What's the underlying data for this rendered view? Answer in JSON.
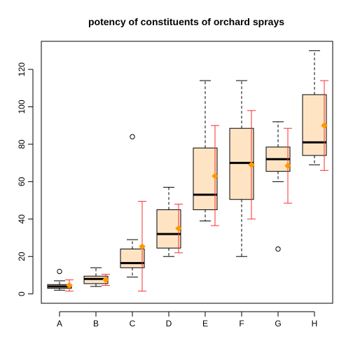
{
  "chart_data": {
    "type": "boxplot",
    "title": "potency of constituents of orchard sprays",
    "xlabel": "",
    "ylabel": "",
    "ylim": [
      -5,
      135
    ],
    "y_ticks": [
      0,
      20,
      40,
      60,
      80,
      100,
      120
    ],
    "categories": [
      "A",
      "B",
      "C",
      "D",
      "E",
      "F",
      "G",
      "H"
    ],
    "boxes": [
      {
        "category": "A",
        "whisker_low": 2,
        "q1": 3,
        "median": 4,
        "q3": 5,
        "whisker_high": 7,
        "outliers": [
          12
        ],
        "mean": 4.6,
        "ci_low": 1.5,
        "ci_high": 7.5
      },
      {
        "category": "B",
        "whisker_low": 4,
        "q1": 5.5,
        "median": 8,
        "q3": 9.5,
        "whisker_high": 14,
        "outliers": [],
        "mean": 7.6,
        "ci_low": 4.5,
        "ci_high": 10.5
      },
      {
        "category": "C",
        "whisker_low": 9,
        "q1": 14,
        "median": 16.5,
        "q3": 24,
        "whisker_high": 29,
        "outliers": [
          84
        ],
        "mean": 25.3,
        "ci_low": 1.5,
        "ci_high": 49.5
      },
      {
        "category": "D",
        "whisker_low": 20,
        "q1": 24.5,
        "median": 32,
        "q3": 45,
        "whisker_high": 57,
        "outliers": [],
        "mean": 35,
        "ci_low": 22,
        "ci_high": 48
      },
      {
        "category": "E",
        "whisker_low": 39,
        "q1": 45,
        "median": 53,
        "q3": 78,
        "whisker_high": 114,
        "outliers": [],
        "mean": 63,
        "ci_low": 36.5,
        "ci_high": 90
      },
      {
        "category": "F",
        "whisker_low": 20,
        "q1": 50.5,
        "median": 70,
        "q3": 88.5,
        "whisker_high": 114,
        "outliers": [],
        "mean": 69,
        "ci_low": 40,
        "ci_high": 98
      },
      {
        "category": "G",
        "whisker_low": 60,
        "q1": 65.5,
        "median": 72,
        "q3": 78.5,
        "whisker_high": 92,
        "outliers": [
          24
        ],
        "mean": 68.5,
        "ci_low": 48.5,
        "ci_high": 88.5
      },
      {
        "category": "H",
        "whisker_low": 69,
        "q1": 74,
        "median": 81,
        "q3": 106.5,
        "whisker_high": 130,
        "outliers": [],
        "mean": 90,
        "ci_low": 66,
        "ci_high": 114
      }
    ],
    "colors": {
      "box_fill": "#ffe4c4",
      "mean_marker": "#ff9900",
      "error_bar": "#ff2d2d"
    },
    "grid": false,
    "legend": "none"
  }
}
